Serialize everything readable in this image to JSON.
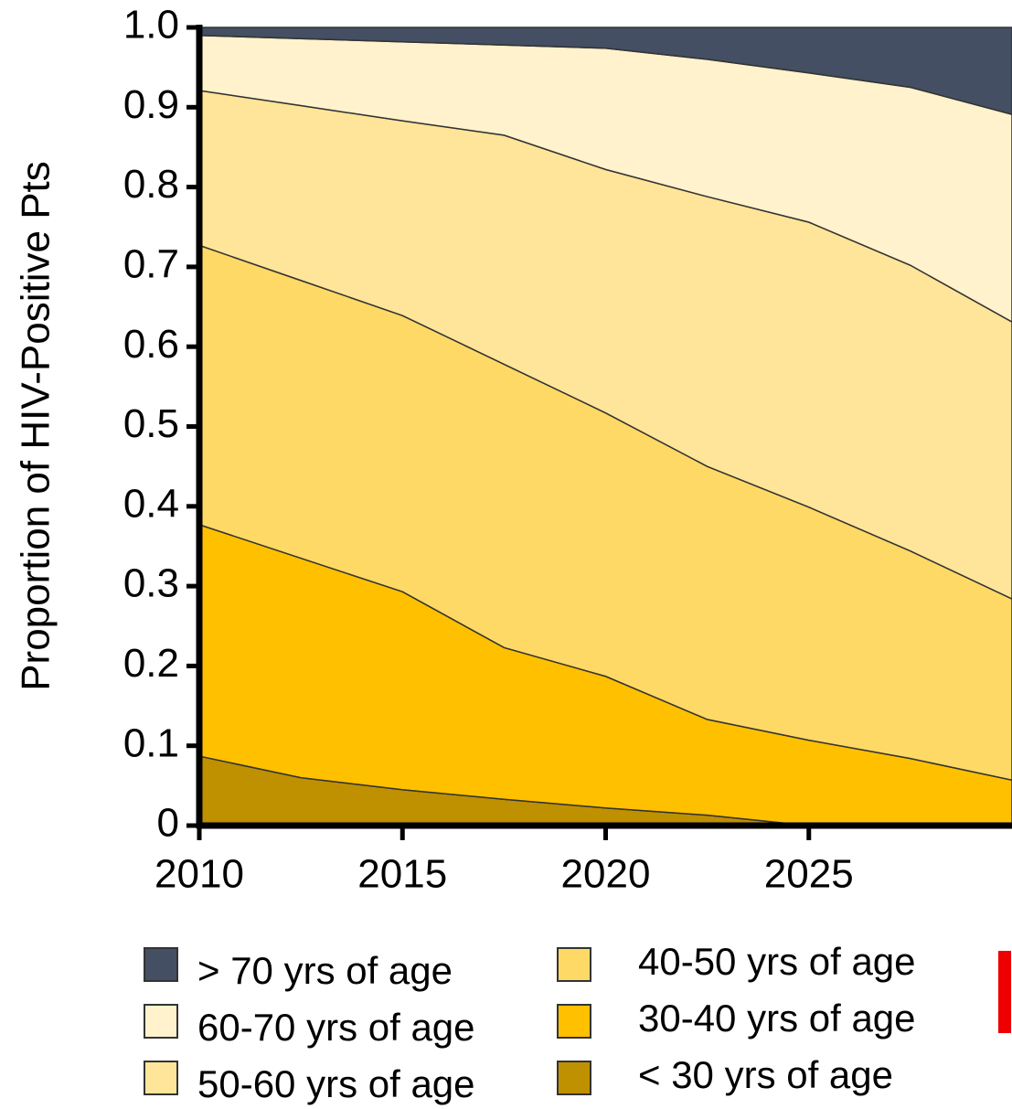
{
  "chart_data": {
    "type": "stacked_area",
    "ylabel": "Proportion of HIV-Positive Pts",
    "x": [
      2010,
      2012.5,
      2015,
      2017.5,
      2020,
      2022.5,
      2025,
      2027.5,
      2030
    ],
    "xlim": [
      2010,
      2030
    ],
    "xticks": [
      2010,
      2015,
      2020,
      2025
    ],
    "ylim": [
      0,
      1
    ],
    "yticks": [
      0,
      0.1,
      0.2,
      0.3,
      0.4,
      0.5,
      0.6,
      0.7,
      0.8,
      0.9,
      {
        "value": 1,
        "label": "1.0"
      }
    ],
    "series": [
      {
        "name": "> 70 yrs of age",
        "color": "#444f63",
        "values": [
          0.01,
          0.014,
          0.018,
          0.022,
          0.026,
          0.04,
          0.057,
          0.075,
          0.109
        ]
      },
      {
        "name": "60-70 yrs of age",
        "color": "#fff2cc",
        "values": [
          0.069,
          0.084,
          0.099,
          0.113,
          0.152,
          0.172,
          0.187,
          0.223,
          0.26
        ]
      },
      {
        "name": "50-60 yrs of age",
        "color": "#ffe599",
        "values": [
          0.194,
          0.219,
          0.244,
          0.287,
          0.305,
          0.338,
          0.357,
          0.358,
          0.347
        ]
      },
      {
        "name": "40-50 yrs of age",
        "color": "#ffd966",
        "values": [
          0.35,
          0.348,
          0.346,
          0.355,
          0.33,
          0.317,
          0.292,
          0.26,
          0.227
        ]
      },
      {
        "name": "30-40 yrs of age",
        "color": "#ffc000",
        "values": [
          0.29,
          0.275,
          0.248,
          0.19,
          0.165,
          0.12,
          0.107,
          0.084,
          0.057
        ]
      },
      {
        "name": "< 30 yrs of age",
        "color": "#bf9000",
        "values": [
          0.087,
          0.06,
          0.045,
          0.033,
          0.022,
          0.013,
          0,
          0,
          0
        ]
      }
    ]
  }
}
